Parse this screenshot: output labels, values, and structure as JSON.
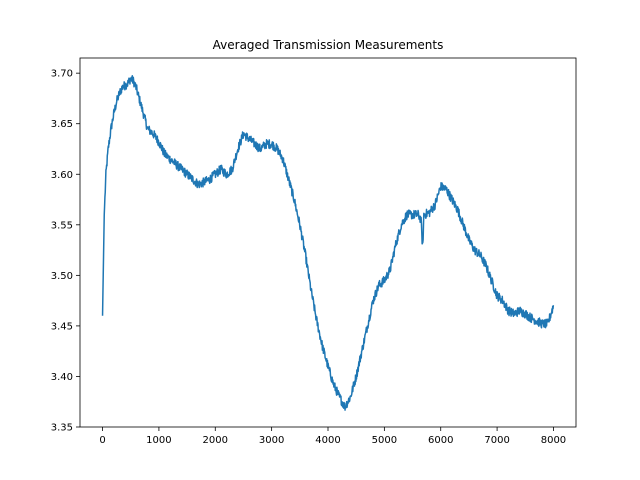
{
  "chart_data": {
    "type": "line",
    "title": "Averaged Transmission Measurements",
    "xlabel": "",
    "ylabel": "",
    "xlim": [
      -400,
      8400
    ],
    "ylim": [
      3.35,
      3.715
    ],
    "xticks": [
      0,
      1000,
      2000,
      3000,
      4000,
      5000,
      6000,
      7000,
      8000
    ],
    "xtick_labels": [
      "0",
      "1000",
      "2000",
      "3000",
      "4000",
      "5000",
      "6000",
      "7000",
      "8000"
    ],
    "yticks": [
      3.35,
      3.4,
      3.45,
      3.5,
      3.55,
      3.6,
      3.65,
      3.7
    ],
    "ytick_labels": [
      "3.35",
      "3.40",
      "3.45",
      "3.50",
      "3.55",
      "3.60",
      "3.65",
      "3.70"
    ],
    "grid": false,
    "series": [
      {
        "color": "#1f77b4",
        "x": [
          0,
          30,
          60,
          100,
          150,
          200,
          250,
          300,
          350,
          400,
          450,
          500,
          550,
          600,
          650,
          700,
          800,
          900,
          1000,
          1100,
          1200,
          1300,
          1400,
          1500,
          1600,
          1700,
          1800,
          1900,
          2000,
          2100,
          2200,
          2300,
          2400,
          2500,
          2600,
          2700,
          2800,
          2900,
          3000,
          3100,
          3200,
          3300,
          3400,
          3500,
          3600,
          3700,
          3800,
          3900,
          4000,
          4100,
          4200,
          4300,
          4400,
          4500,
          4600,
          4700,
          4800,
          4900,
          5000,
          5100,
          5200,
          5300,
          5400,
          5500,
          5600,
          5650,
          5680,
          5700,
          5800,
          5900,
          6000,
          6100,
          6200,
          6300,
          6400,
          6500,
          6600,
          6700,
          6800,
          6900,
          7000,
          7100,
          7200,
          7300,
          7400,
          7500,
          7600,
          7700,
          7800,
          7900,
          8000
        ],
        "y": [
          3.46,
          3.56,
          3.6,
          3.625,
          3.645,
          3.66,
          3.672,
          3.68,
          3.686,
          3.688,
          3.69,
          3.695,
          3.692,
          3.685,
          3.675,
          3.665,
          3.645,
          3.64,
          3.632,
          3.62,
          3.615,
          3.61,
          3.605,
          3.6,
          3.595,
          3.59,
          3.592,
          3.595,
          3.6,
          3.605,
          3.6,
          3.605,
          3.625,
          3.64,
          3.635,
          3.63,
          3.625,
          3.63,
          3.63,
          3.625,
          3.615,
          3.595,
          3.575,
          3.55,
          3.52,
          3.485,
          3.455,
          3.43,
          3.41,
          3.392,
          3.38,
          3.37,
          3.38,
          3.4,
          3.425,
          3.45,
          3.475,
          3.49,
          3.495,
          3.505,
          3.53,
          3.55,
          3.56,
          3.56,
          3.56,
          3.555,
          3.525,
          3.56,
          3.562,
          3.57,
          3.588,
          3.585,
          3.575,
          3.565,
          3.55,
          3.535,
          3.525,
          3.52,
          3.51,
          3.495,
          3.48,
          3.475,
          3.465,
          3.462,
          3.465,
          3.462,
          3.458,
          3.455,
          3.452,
          3.452,
          3.47
        ]
      }
    ]
  }
}
